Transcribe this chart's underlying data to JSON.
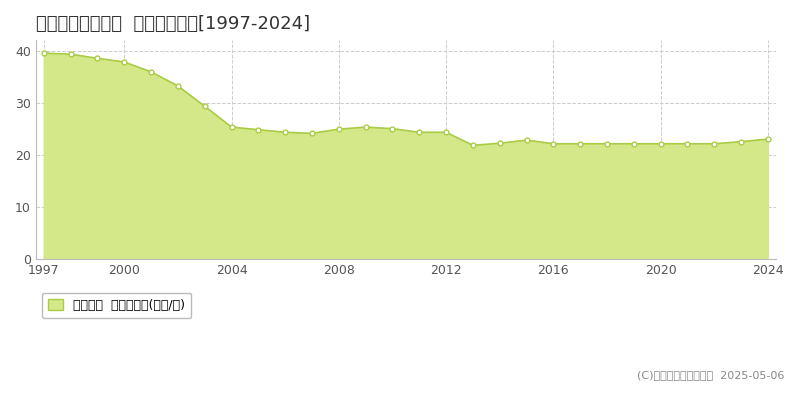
{
  "title": "愛知郡東郷町春木  基準地価推移[1997-2024]",
  "years": [
    1997,
    1998,
    1999,
    2000,
    2001,
    2002,
    2003,
    2004,
    2005,
    2006,
    2007,
    2008,
    2009,
    2010,
    2011,
    2012,
    2013,
    2014,
    2015,
    2016,
    2017,
    2018,
    2019,
    2020,
    2021,
    2022,
    2023,
    2024
  ],
  "values": [
    39.5,
    39.3,
    38.5,
    37.8,
    35.9,
    33.2,
    29.3,
    25.3,
    24.8,
    24.3,
    24.1,
    24.9,
    25.3,
    25.0,
    24.3,
    24.3,
    21.8,
    22.2,
    22.8,
    22.1,
    22.1,
    22.1,
    22.1,
    22.1,
    22.1,
    22.1,
    22.5,
    23.0
  ],
  "line_color": "#aacc44",
  "fill_color": "#d4e88a",
  "marker_color": "#ffffff",
  "marker_edge_color": "#aacc44",
  "background_color": "#ffffff",
  "grid_color": "#cccccc",
  "title_fontsize": 13,
  "tick_fontsize": 9,
  "ylim": [
    0,
    42
  ],
  "yticks": [
    0,
    10,
    20,
    30,
    40
  ],
  "xticks": [
    1997,
    2000,
    2004,
    2008,
    2012,
    2016,
    2020,
    2024
  ],
  "legend_label": "基準地価  平均坪単価(万円/坪)",
  "copyright_text": "(C)土地価格ドットコム  2025-05-06"
}
